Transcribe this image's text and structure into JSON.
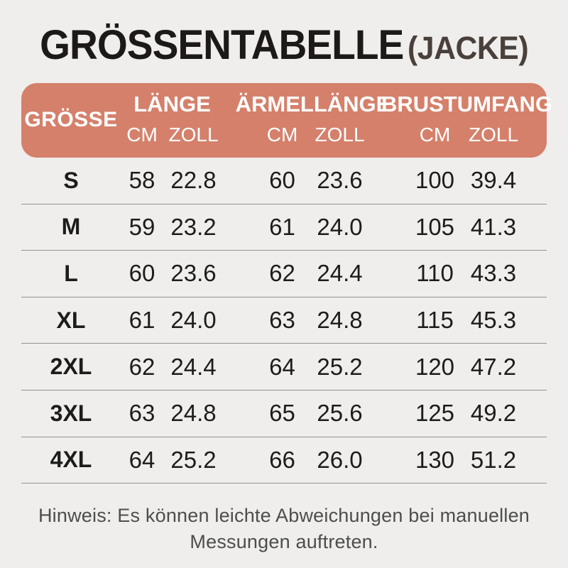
{
  "title": {
    "main": "GRÖSSENTABELLE",
    "suffix": "(JACKE)"
  },
  "table": {
    "size_header": "GRÖSSE",
    "groups": [
      {
        "label": "LÄNGE",
        "sub": [
          "CM",
          "ZOLL"
        ]
      },
      {
        "label": "ÄRMELLÄNGE",
        "sub": [
          "CM",
          "ZOLL"
        ]
      },
      {
        "label": "BRUSTUMFANG",
        "sub": [
          "CM",
          "ZOLL"
        ]
      }
    ],
    "rows": [
      {
        "size": "S",
        "values": [
          "58",
          "22.8",
          "60",
          "23.6",
          "100",
          "39.4"
        ]
      },
      {
        "size": "M",
        "values": [
          "59",
          "23.2",
          "61",
          "24.0",
          "105",
          "41.3"
        ]
      },
      {
        "size": "L",
        "values": [
          "60",
          "23.6",
          "62",
          "24.4",
          "110",
          "43.3"
        ]
      },
      {
        "size": "XL",
        "values": [
          "61",
          "24.0",
          "63",
          "24.8",
          "115",
          "45.3"
        ]
      },
      {
        "size": "2XL",
        "values": [
          "62",
          "24.4",
          "64",
          "25.2",
          "120",
          "47.2"
        ]
      },
      {
        "size": "3XL",
        "values": [
          "63",
          "24.8",
          "65",
          "25.6",
          "125",
          "49.2"
        ]
      },
      {
        "size": "4XL",
        "values": [
          "64",
          "25.2",
          "66",
          "26.0",
          "130",
          "51.2"
        ]
      }
    ]
  },
  "note": {
    "lines": [
      "Hinweis: Es können leichte Abweichungen bei manuellen",
      "Messungen auftreten."
    ]
  },
  "colors": {
    "background": "#efeeec",
    "header_accent": "#d5806b",
    "header_text": "#ffffff",
    "title_main": "#1d1917",
    "title_suffix": "#4a403b",
    "body_text": "#1c1c1a",
    "divider": "#929292",
    "note_text": "#4d4d4d"
  }
}
